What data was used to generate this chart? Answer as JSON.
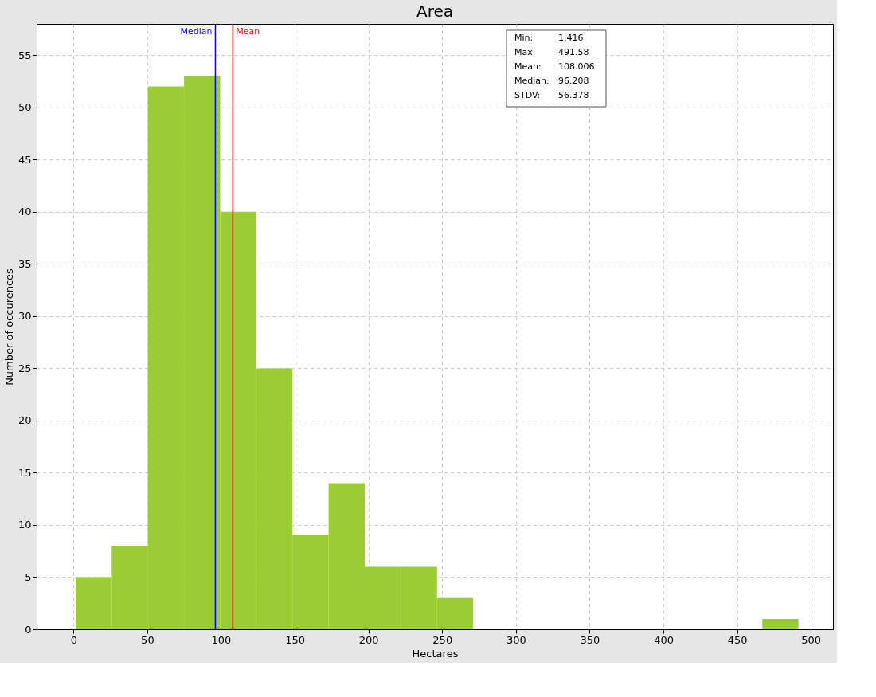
{
  "chart_data": {
    "type": "histogram",
    "title": "Area",
    "xlabel": "Hectares",
    "ylabel": "Number of occurences",
    "bins": [
      1.416,
      25.924,
      50.432,
      74.941,
      99.449,
      123.957,
      148.465,
      172.973,
      197.482,
      221.99,
      246.498,
      271.006,
      295.514,
      320.023,
      344.531,
      369.039,
      393.547,
      418.055,
      442.564,
      467.072,
      491.58
    ],
    "values": [
      5,
      8,
      52,
      53,
      40,
      25,
      9,
      14,
      6,
      6,
      3,
      0,
      0,
      0,
      0,
      0,
      0,
      0,
      0,
      1
    ],
    "color": "#9acd32",
    "xlim": [
      -25,
      515
    ],
    "xticks": [
      0,
      50,
      100,
      150,
      200,
      250,
      300,
      350,
      400,
      450,
      500
    ],
    "ylim": [
      0,
      58
    ],
    "yticks": [
      0,
      5,
      10,
      15,
      20,
      25,
      30,
      35,
      40,
      45,
      50,
      55
    ],
    "grid": true,
    "ref_lines": [
      {
        "axis": "x",
        "value": 96.208,
        "label": "Median",
        "color": "#0000ff"
      },
      {
        "axis": "x",
        "value": 108.006,
        "label": "Mean",
        "color": "#ff0000"
      }
    ],
    "annotations": [
      [
        "Min:",
        "1.416"
      ],
      [
        "Max:",
        "491.58"
      ],
      [
        "Mean:",
        "108.006"
      ],
      [
        "Median:",
        "96.208"
      ],
      [
        "STDV:",
        "56.378"
      ]
    ]
  }
}
